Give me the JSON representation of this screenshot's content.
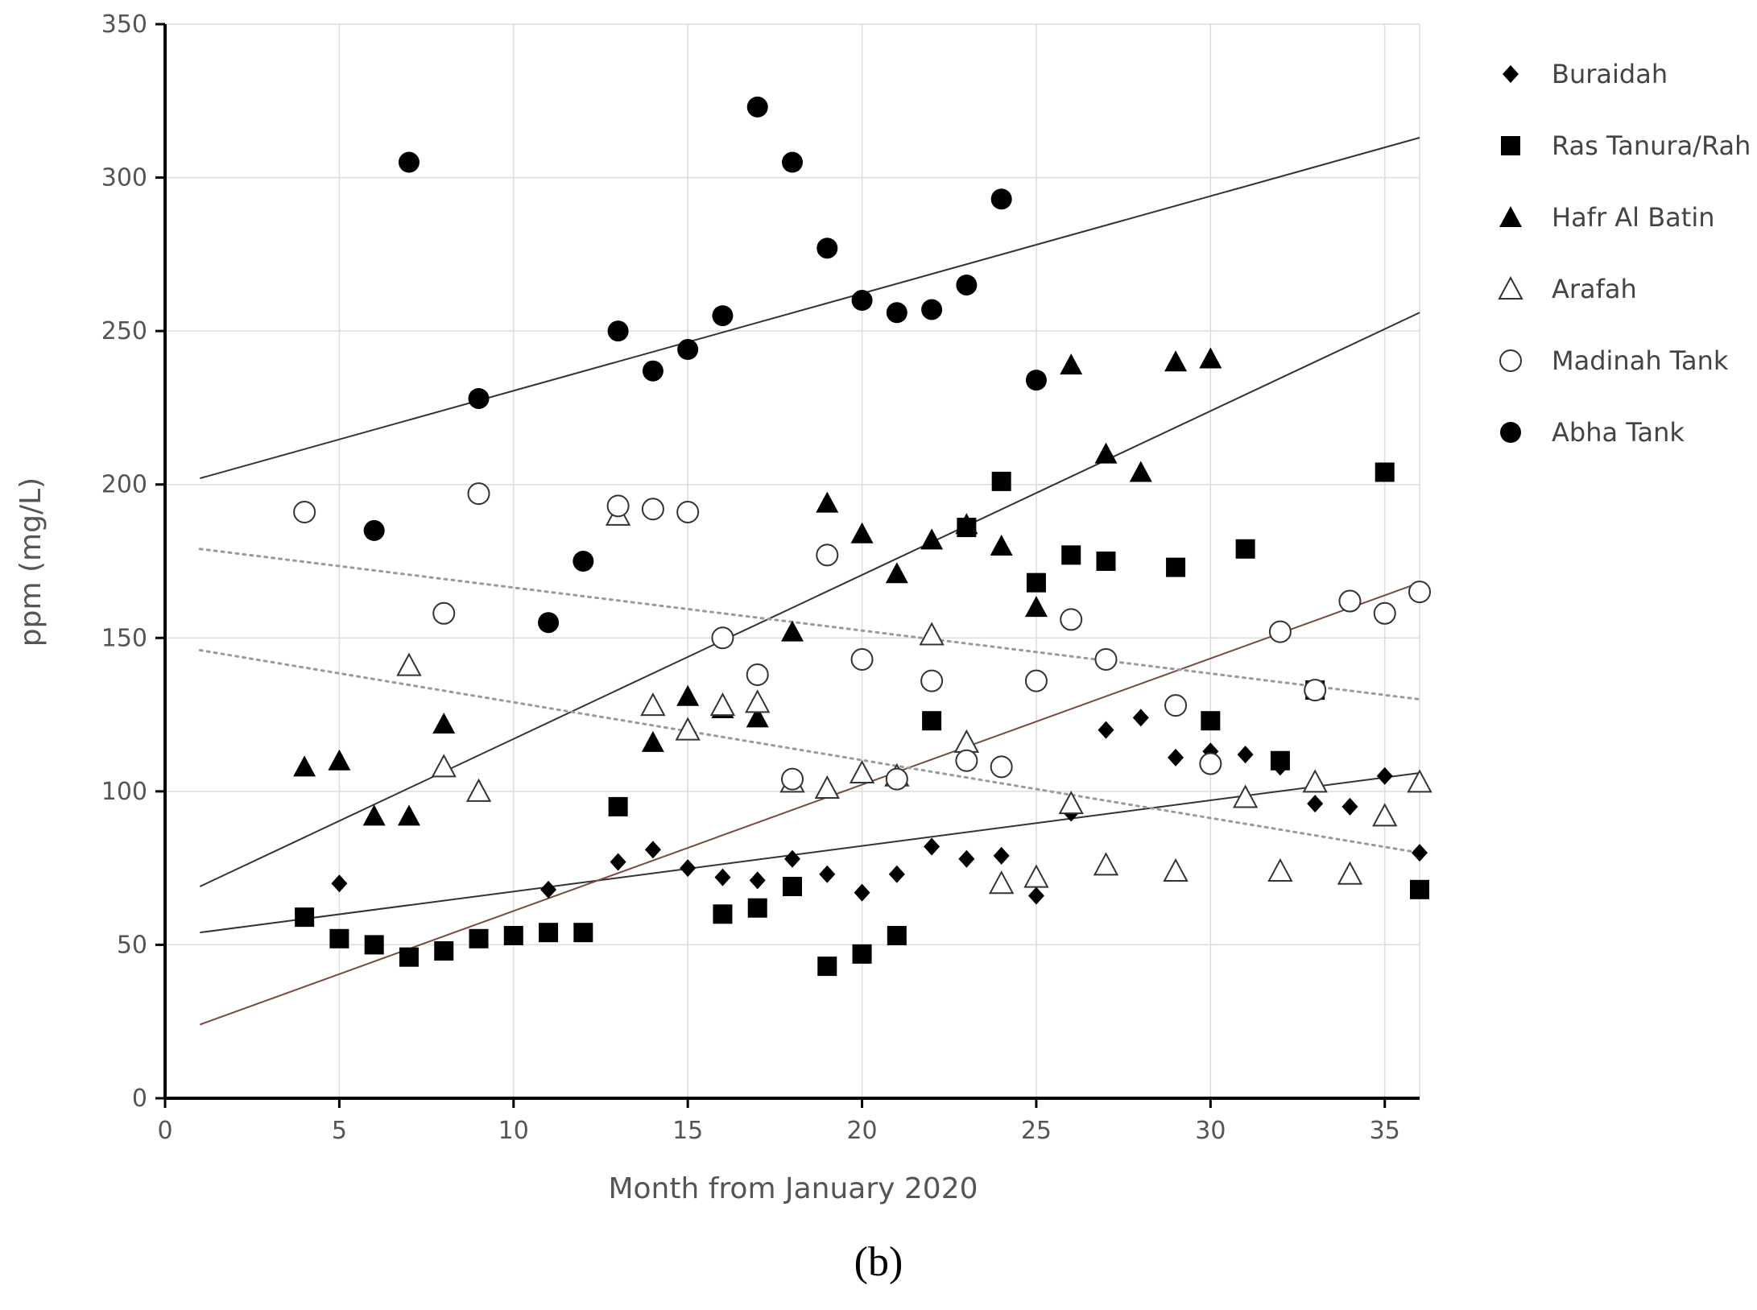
{
  "panel_label": "(b)",
  "chart_data": {
    "type": "scatter",
    "title": "",
    "xlabel": "Month from January 2020",
    "ylabel": "ppm (mg/L)",
    "xlim": [
      0,
      36
    ],
    "ylim": [
      0,
      350
    ],
    "xticks": [
      0,
      5,
      10,
      15,
      20,
      25,
      30,
      35
    ],
    "yticks": [
      0,
      50,
      100,
      150,
      200,
      250,
      300,
      350
    ],
    "grid": true,
    "legend_position": "right",
    "series": [
      {
        "name": "Buraidah",
        "marker": "diamond",
        "points": [
          [
            5,
            70
          ],
          [
            11,
            68
          ],
          [
            13,
            77
          ],
          [
            14,
            81
          ],
          [
            15,
            75
          ],
          [
            16,
            72
          ],
          [
            17,
            71
          ],
          [
            18,
            78
          ],
          [
            19,
            73
          ],
          [
            20,
            67
          ],
          [
            21,
            73
          ],
          [
            22,
            82
          ],
          [
            23,
            78
          ],
          [
            24,
            79
          ],
          [
            25,
            66
          ],
          [
            26,
            93
          ],
          [
            27,
            120
          ],
          [
            28,
            124
          ],
          [
            29,
            111
          ],
          [
            30,
            113
          ],
          [
            31,
            112
          ],
          [
            32,
            108
          ],
          [
            33,
            96
          ],
          [
            34,
            95
          ],
          [
            35,
            105
          ],
          [
            36,
            80
          ]
        ],
        "trendline": {
          "style": "solid",
          "x": [
            1,
            36
          ],
          "y": [
            54,
            106
          ]
        }
      },
      {
        "name": "Ras Tanura/Rah",
        "marker": "square",
        "points": [
          [
            4,
            59
          ],
          [
            5,
            52
          ],
          [
            6,
            50
          ],
          [
            7,
            46
          ],
          [
            8,
            48
          ],
          [
            9,
            52
          ],
          [
            10,
            53
          ],
          [
            11,
            54
          ],
          [
            12,
            54
          ],
          [
            13,
            95
          ],
          [
            16,
            60
          ],
          [
            17,
            62
          ],
          [
            18,
            69
          ],
          [
            19,
            43
          ],
          [
            20,
            47
          ],
          [
            21,
            53
          ],
          [
            22,
            123
          ],
          [
            23,
            186
          ],
          [
            24,
            201
          ],
          [
            25,
            168
          ],
          [
            26,
            177
          ],
          [
            27,
            175
          ],
          [
            29,
            173
          ],
          [
            30,
            123
          ],
          [
            31,
            179
          ],
          [
            32,
            110
          ],
          [
            33,
            133
          ],
          [
            35,
            204
          ],
          [
            36,
            68
          ]
        ],
        "trendline": {
          "style": "solid",
          "color": "#7a4a3a",
          "x": [
            1,
            36
          ],
          "y": [
            24,
            168
          ]
        }
      },
      {
        "name": "Hafr Al Batin",
        "marker": "triangle",
        "points": [
          [
            4,
            108
          ],
          [
            5,
            110
          ],
          [
            6,
            92
          ],
          [
            7,
            92
          ],
          [
            8,
            122
          ],
          [
            14,
            116
          ],
          [
            15,
            131
          ],
          [
            16,
            127
          ],
          [
            17,
            124
          ],
          [
            18,
            152
          ],
          [
            19,
            194
          ],
          [
            20,
            184
          ],
          [
            21,
            171
          ],
          [
            22,
            182
          ],
          [
            23,
            187
          ],
          [
            24,
            180
          ],
          [
            25,
            160
          ],
          [
            26,
            239
          ],
          [
            27,
            210
          ],
          [
            28,
            204
          ],
          [
            29,
            240
          ],
          [
            30,
            241
          ]
        ],
        "trendline": {
          "style": "solid",
          "x": [
            1,
            36
          ],
          "y": [
            69,
            256
          ]
        }
      },
      {
        "name": "Arafah",
        "marker": "triangle-open",
        "points": [
          [
            7,
            141
          ],
          [
            8,
            108
          ],
          [
            9,
            100
          ],
          [
            13,
            190
          ],
          [
            14,
            128
          ],
          [
            15,
            120
          ],
          [
            16,
            128
          ],
          [
            17,
            129
          ],
          [
            18,
            103
          ],
          [
            19,
            101
          ],
          [
            20,
            106
          ],
          [
            21,
            105
          ],
          [
            22,
            151
          ],
          [
            23,
            116
          ],
          [
            24,
            70
          ],
          [
            25,
            72
          ],
          [
            26,
            96
          ],
          [
            27,
            76
          ],
          [
            29,
            74
          ],
          [
            31,
            98
          ],
          [
            32,
            74
          ],
          [
            33,
            103
          ],
          [
            34,
            73
          ],
          [
            35,
            92
          ],
          [
            36,
            103
          ]
        ],
        "trendline": {
          "style": "dotted",
          "x": [
            1,
            36
          ],
          "y": [
            146,
            80
          ]
        }
      },
      {
        "name": "Madinah Tank",
        "marker": "circle-open",
        "points": [
          [
            4,
            191
          ],
          [
            8,
            158
          ],
          [
            9,
            197
          ],
          [
            13,
            193
          ],
          [
            14,
            192
          ],
          [
            15,
            191
          ],
          [
            16,
            150
          ],
          [
            17,
            138
          ],
          [
            18,
            104
          ],
          [
            19,
            177
          ],
          [
            20,
            143
          ],
          [
            21,
            104
          ],
          [
            22,
            136
          ],
          [
            23,
            110
          ],
          [
            24,
            108
          ],
          [
            25,
            136
          ],
          [
            26,
            156
          ],
          [
            27,
            143
          ],
          [
            29,
            128
          ],
          [
            30,
            109
          ],
          [
            32,
            152
          ],
          [
            33,
            133
          ],
          [
            34,
            162
          ],
          [
            35,
            158
          ],
          [
            36,
            165
          ]
        ],
        "trendline": {
          "style": "dotted",
          "x": [
            1,
            36
          ],
          "y": [
            179,
            130
          ]
        }
      },
      {
        "name": "Abha Tank",
        "marker": "circle",
        "points": [
          [
            6,
            185
          ],
          [
            7,
            305
          ],
          [
            9,
            228
          ],
          [
            11,
            155
          ],
          [
            12,
            175
          ],
          [
            13,
            250
          ],
          [
            14,
            237
          ],
          [
            15,
            244
          ],
          [
            16,
            255
          ],
          [
            17,
            323
          ],
          [
            18,
            305
          ],
          [
            19,
            277
          ],
          [
            20,
            260
          ],
          [
            21,
            256
          ],
          [
            22,
            257
          ],
          [
            23,
            265
          ],
          [
            24,
            293
          ],
          [
            25,
            234
          ]
        ],
        "trendline": {
          "style": "solid",
          "x": [
            1,
            36
          ],
          "y": [
            202,
            313
          ]
        }
      }
    ]
  }
}
